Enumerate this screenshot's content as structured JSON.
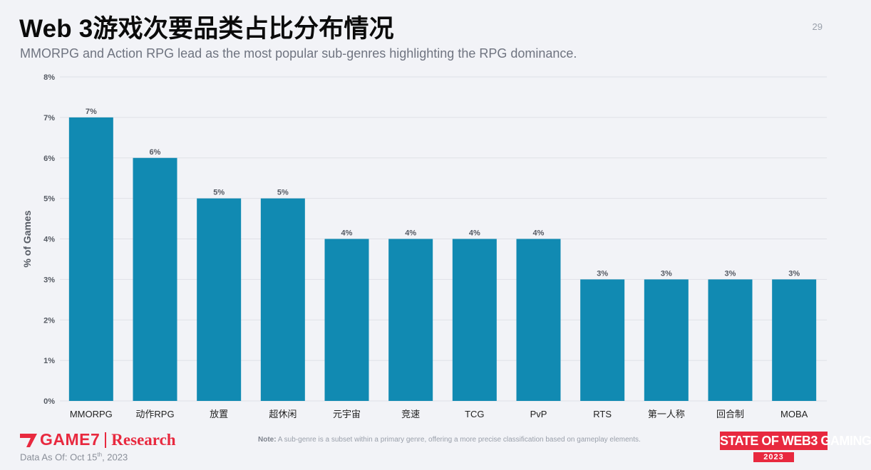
{
  "header": {
    "title": "Web 3游戏次要品类占比分布情况",
    "subtitle": "MMORPG and Action RPG lead as the most popular sub-genres highlighting the RPG dominance.",
    "page_number": "29"
  },
  "chart_data": {
    "type": "bar",
    "categories": [
      "MMORPG",
      "动作RPG",
      "放置",
      "超休闲",
      "元宇宙",
      "竞速",
      "TCG",
      "PvP",
      "RTS",
      "第一人称",
      "回合制",
      "MOBA"
    ],
    "values": [
      7,
      6,
      5,
      5,
      4,
      4,
      4,
      4,
      3,
      3,
      3,
      3
    ],
    "data_labels": [
      "7%",
      "6%",
      "5%",
      "5%",
      "4%",
      "4%",
      "4%",
      "4%",
      "3%",
      "3%",
      "3%",
      "3%"
    ],
    "ylabel": "% of Games",
    "xlabel": "",
    "ylim": [
      0,
      8
    ],
    "yticks": [
      "0%",
      "1%",
      "2%",
      "3%",
      "4%",
      "5%",
      "6%",
      "7%",
      "8%"
    ],
    "bar_color": "#118ab2",
    "grid": true
  },
  "footer": {
    "logo_game7": "GAME7",
    "logo_research": "Research",
    "date_prefix": "Data As Of: Oct 15",
    "date_sup": "th",
    "date_suffix": ", 2023",
    "note_label": "Note:",
    "note_text": " A sub-genre is a subset within a primary genre, offering a more precise classification based on gameplay elements.",
    "brand_line": "STATE OF WEB3 GAMING",
    "brand_year": "2023"
  },
  "colors": {
    "accent": "#e8293f",
    "bar": "#118ab2",
    "background": "#f2f3f7"
  }
}
